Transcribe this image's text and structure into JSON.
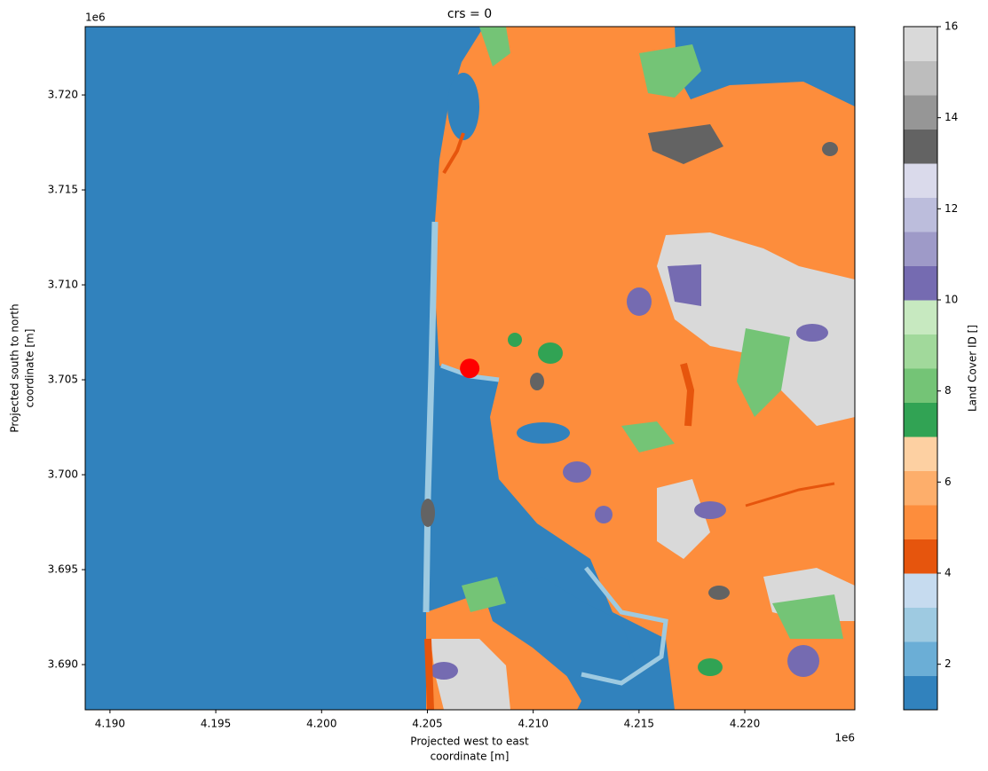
{
  "chart_data": {
    "type": "raster",
    "title": "crs = 0",
    "xlabel": [
      "Projected west to east",
      "coordinate [m]"
    ],
    "ylabel": [
      "Projected south to north",
      "coordinate [m]"
    ],
    "x_offset": "1e6",
    "y_offset": "1e6",
    "xlim": [
      4.18883,
      4.2252
    ],
    "ylim": [
      3.68762,
      3.7236
    ],
    "xticks": [
      {
        "value": 4.19,
        "label": "4.190"
      },
      {
        "value": 4.195,
        "label": "4.195"
      },
      {
        "value": 4.2,
        "label": "4.200"
      },
      {
        "value": 4.205,
        "label": "4.205"
      },
      {
        "value": 4.21,
        "label": "4.210"
      },
      {
        "value": 4.215,
        "label": "4.215"
      },
      {
        "value": 4.22,
        "label": "4.220"
      }
    ],
    "yticks": [
      {
        "value": 3.69,
        "label": "3.690"
      },
      {
        "value": 3.695,
        "label": "3.695"
      },
      {
        "value": 3.7,
        "label": "3.700"
      },
      {
        "value": 3.705,
        "label": "3.705"
      },
      {
        "value": 3.71,
        "label": "3.710"
      },
      {
        "value": 3.715,
        "label": "3.715"
      },
      {
        "value": 3.72,
        "label": "3.720"
      }
    ],
    "series": [
      {
        "color": "#ff0000",
        "x": [
          4.207
        ],
        "values": [
          3.7056
        ]
      }
    ],
    "colorbar": {
      "label": "Land Cover ID []",
      "lim": [
        1,
        16
      ],
      "ticks": [
        2,
        4,
        6,
        8,
        10,
        12,
        14,
        16
      ],
      "colors": [
        "#3182bd",
        "#6baed6",
        "#9ecae1",
        "#c6dbef",
        "#e6550d",
        "#fd8d3c",
        "#fdae6b",
        "#fdd0a2",
        "#31a354",
        "#74c476",
        "#a1d99b",
        "#c7e9c0",
        "#756bb1",
        "#9e9ac8",
        "#bcbddc",
        "#dadaeb",
        "#636363",
        "#969696",
        "#bdbdbd",
        "#d9d9d9"
      ]
    }
  }
}
